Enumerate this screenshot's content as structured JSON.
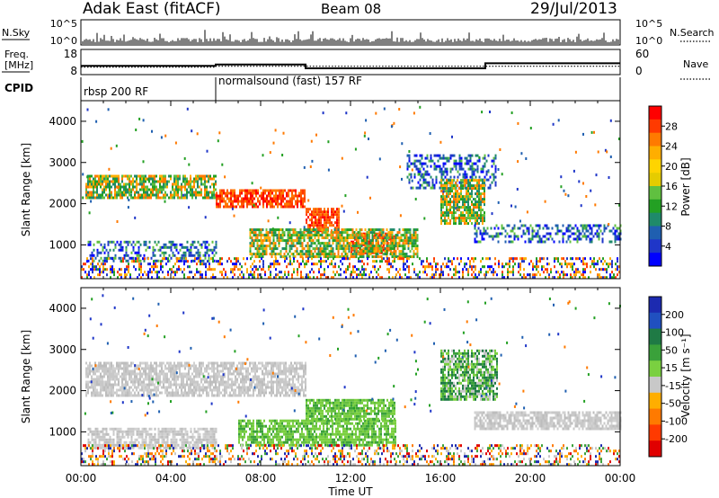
{
  "header": {
    "station": "Adak East (fitACF)",
    "beam": "Beam 08",
    "date": "29/Jul/2013"
  },
  "panels": {
    "nsky": {
      "label": "N.Sky",
      "ticks_left": [
        "10^5",
        "10^0"
      ],
      "ticks_right": [
        "10^5",
        "10^0"
      ],
      "right_label": "N.Search",
      "right_legend_style": "dotted"
    },
    "freq": {
      "label_line1": "Freq.",
      "label_line2": "[MHz]",
      "ticks_left": [
        "18",
        "8"
      ],
      "ticks_right": [
        "60",
        "0"
      ],
      "right_label": "Nave",
      "right_legend_style": "dotted",
      "freq_steps": [
        {
          "start_h": 0,
          "end_h": 6,
          "mhz": 11.5
        },
        {
          "start_h": 6,
          "end_h": 10,
          "mhz": 12.0
        },
        {
          "start_h": 10,
          "end_h": 18,
          "mhz": 10.5
        },
        {
          "start_h": 18,
          "end_h": 24,
          "mhz": 12.5
        }
      ],
      "nave_steps": [
        {
          "start_h": 0,
          "end_h": 6,
          "value": 18
        },
        {
          "start_h": 6,
          "end_h": 24,
          "value": 20
        }
      ]
    },
    "cpid": {
      "label": "CPID",
      "segments": [
        {
          "start_h": 0,
          "end_h": 6,
          "text": "rbsp 200 RF"
        },
        {
          "start_h": 6,
          "end_h": 24,
          "text": "normalsound (fast) 157 RF"
        }
      ]
    }
  },
  "chart_data": [
    {
      "type": "heatmap",
      "ylabel": "Slant Range [km]",
      "xlim": [
        0,
        24
      ],
      "ylim": [
        180,
        4500
      ],
      "y_ticks": [
        "1000",
        "2000",
        "3000",
        "4000"
      ],
      "colorbar_label": "Power [dB]",
      "colorbar_ticks": [
        "28",
        "24",
        "20",
        "16",
        "12",
        "8",
        "4"
      ],
      "colorbar_colors": [
        "#ff0000",
        "#ff3a00",
        "#ff7a00",
        "#ffae00",
        "#ffd400",
        "#e5cc00",
        "#60c040",
        "#23a023",
        "#1f8a6a",
        "#1f5fb0",
        "#1f36c8",
        "#0000ff"
      ],
      "echo_regions": [
        {
          "t0": 0.2,
          "t1": 6.0,
          "r0": 2150,
          "r1": 2700,
          "level": "moderate"
        },
        {
          "t0": 6.0,
          "t1": 10.0,
          "r0": 1950,
          "r1": 2350,
          "level": "strong"
        },
        {
          "t0": 10.0,
          "t1": 11.5,
          "r0": 1350,
          "r1": 1900,
          "level": "strong"
        },
        {
          "t0": 12.0,
          "t1": 14.0,
          "r0": 800,
          "r1": 1300,
          "level": "strong"
        },
        {
          "t0": 7.5,
          "t1": 15.0,
          "r0": 700,
          "r1": 1400,
          "level": "moderate"
        },
        {
          "t0": 0.3,
          "t1": 6.0,
          "r0": 600,
          "r1": 1100,
          "level": "weak"
        },
        {
          "t0": 14.5,
          "t1": 18.5,
          "r0": 2400,
          "r1": 3200,
          "level": "weak"
        },
        {
          "t0": 16.0,
          "t1": 18.0,
          "r0": 1500,
          "r1": 2600,
          "level": "moderate"
        },
        {
          "t0": 17.5,
          "t1": 24.0,
          "r0": 1100,
          "r1": 1500,
          "level": "weak"
        },
        {
          "t0": 0.0,
          "t1": 24.0,
          "r0": 180,
          "r1": 700,
          "level": "speckle"
        }
      ]
    },
    {
      "type": "heatmap",
      "ylabel": "Slant Range [km]",
      "xlabel": "Time UT",
      "xlim": [
        0,
        24
      ],
      "ylim": [
        180,
        4500
      ],
      "y_ticks": [
        "1000",
        "2000",
        "3000",
        "4000"
      ],
      "x_ticks": [
        "00:00",
        "04:00",
        "08:00",
        "12:00",
        "16:00",
        "20:00",
        "00:00"
      ],
      "colorbar_label": "Velocity [m s⁻¹]",
      "colorbar_ticks": [
        "200",
        "100",
        "50",
        "15",
        "-15",
        "-50",
        "-100",
        "-200"
      ],
      "colorbar_colors": [
        "#1c2ab0",
        "#2050c0",
        "#1f7a45",
        "#3aa13a",
        "#7ad040",
        "#c8c8c8",
        "#ffae00",
        "#ff7a00",
        "#ff3a00",
        "#e00000"
      ],
      "echo_regions": [
        {
          "t0": 0.2,
          "t1": 10.0,
          "r0": 1900,
          "r1": 2700,
          "level": "ground"
        },
        {
          "t0": 0.3,
          "t1": 6.0,
          "r0": 600,
          "r1": 1100,
          "level": "ground"
        },
        {
          "t0": 7.0,
          "t1": 14.0,
          "r0": 700,
          "r1": 1300,
          "level": "positive"
        },
        {
          "t0": 10.0,
          "t1": 14.0,
          "r0": 1300,
          "r1": 1800,
          "level": "positive"
        },
        {
          "t0": 16.0,
          "t1": 18.5,
          "r0": 1800,
          "r1": 3000,
          "level": "mixed"
        },
        {
          "t0": 17.5,
          "t1": 24.0,
          "r0": 1100,
          "r1": 1500,
          "level": "ground"
        },
        {
          "t0": 0.0,
          "t1": 24.0,
          "r0": 180,
          "r1": 700,
          "level": "speckle"
        }
      ]
    }
  ]
}
